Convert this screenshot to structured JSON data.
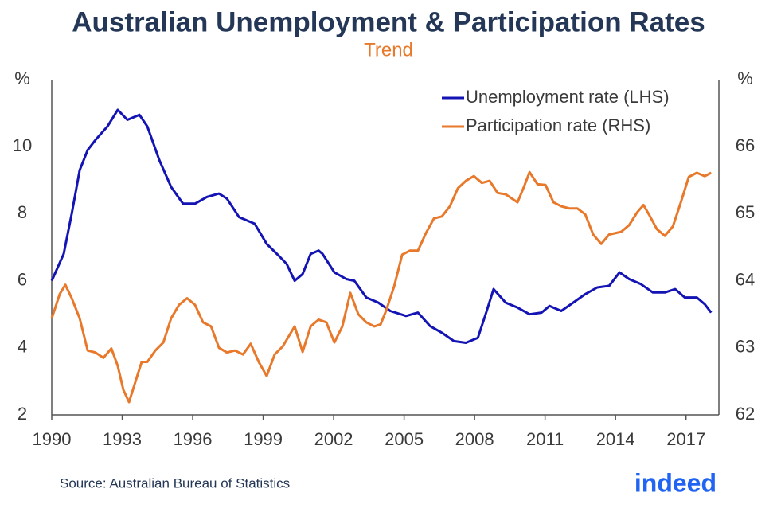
{
  "chart_data": {
    "type": "line",
    "title": "Australian Unemployment & Participation Rates",
    "subtitle": "Trend",
    "y_label": "%",
    "y2_label": "%",
    "source": "Source: Australian Bureau of Statistics",
    "logo": "indeed",
    "xlim": [
      1990,
      2018.4
    ],
    "xticks": [
      1990,
      1993,
      1996,
      1999,
      2002,
      2005,
      2008,
      2011,
      2014,
      2017
    ],
    "ylim": [
      2,
      12
    ],
    "yticks": [
      2,
      4,
      6,
      8,
      10
    ],
    "y2lim": [
      62,
      67
    ],
    "y2ticks": [
      62,
      63,
      64,
      65,
      66
    ],
    "legend": "upper right",
    "series": [
      {
        "name": "Unemployment rate (LHS)",
        "color": "#1414b4",
        "axis": "y",
        "x": [
          1990.0,
          1990.51,
          1990.85,
          1991.19,
          1991.53,
          1991.86,
          1992.37,
          1992.81,
          1993.22,
          1993.73,
          1994.07,
          1994.58,
          1995.08,
          1995.59,
          1996.1,
          1996.61,
          1997.12,
          1997.46,
          1997.97,
          1998.64,
          1999.15,
          1999.66,
          2000.0,
          2000.34,
          2000.68,
          2001.02,
          2001.36,
          2001.53,
          2002.03,
          2002.54,
          2002.88,
          2003.39,
          2003.9,
          2004.41,
          2005.08,
          2005.59,
          2006.1,
          2006.61,
          2007.12,
          2007.63,
          2008.14,
          2008.47,
          2008.81,
          2009.32,
          2009.83,
          2010.34,
          2010.85,
          2011.19,
          2011.69,
          2012.2,
          2012.71,
          2013.22,
          2013.73,
          2014.17,
          2014.58,
          2015.08,
          2015.59,
          2016.1,
          2016.54,
          2016.95,
          2017.46,
          2017.8,
          2018.07
        ],
        "values": [
          6.0,
          6.8,
          8.0,
          9.3,
          9.9,
          10.2,
          10.6,
          11.1,
          10.8,
          10.95,
          10.6,
          9.6,
          8.8,
          8.3,
          8.3,
          8.5,
          8.6,
          8.45,
          7.9,
          7.7,
          7.1,
          6.75,
          6.5,
          6.0,
          6.2,
          6.8,
          6.9,
          6.8,
          6.25,
          6.05,
          6.0,
          5.5,
          5.35,
          5.1,
          4.95,
          5.05,
          4.65,
          4.45,
          4.2,
          4.15,
          4.3,
          5.0,
          5.75,
          5.35,
          5.2,
          5.0,
          5.05,
          5.25,
          5.1,
          5.35,
          5.6,
          5.8,
          5.85,
          6.25,
          6.05,
          5.9,
          5.65,
          5.65,
          5.75,
          5.5,
          5.5,
          5.3,
          5.05
        ]
      },
      {
        "name": "Participation rate (RHS)",
        "color": "#e8782a",
        "axis": "y2",
        "x": [
          1990.0,
          1990.34,
          1990.58,
          1990.85,
          1991.19,
          1991.53,
          1991.86,
          1992.2,
          1992.54,
          1992.81,
          1993.05,
          1993.29,
          1993.56,
          1993.83,
          1994.07,
          1994.41,
          1994.75,
          1995.08,
          1995.42,
          1995.76,
          1996.1,
          1996.44,
          1996.78,
          1997.12,
          1997.46,
          1997.8,
          1998.14,
          1998.47,
          1998.81,
          1999.15,
          1999.49,
          1999.83,
          2000.34,
          2000.68,
          2001.02,
          2001.36,
          2001.69,
          2002.03,
          2002.37,
          2002.71,
          2003.05,
          2003.39,
          2003.73,
          2004.0,
          2004.24,
          2004.58,
          2004.92,
          2005.25,
          2005.59,
          2005.93,
          2006.27,
          2006.61,
          2006.95,
          2007.29,
          2007.63,
          2007.97,
          2008.31,
          2008.64,
          2008.98,
          2009.32,
          2009.83,
          2010.1,
          2010.34,
          2010.68,
          2011.02,
          2011.36,
          2011.69,
          2012.03,
          2012.37,
          2012.71,
          2013.05,
          2013.39,
          2013.73,
          2014.24,
          2014.58,
          2014.92,
          2015.19,
          2015.42,
          2015.76,
          2016.1,
          2016.44,
          2016.78,
          2017.12,
          2017.46,
          2017.8,
          2018.07
        ],
        "values": [
          63.44,
          63.8,
          63.94,
          63.74,
          63.44,
          62.96,
          62.93,
          62.85,
          62.99,
          62.73,
          62.37,
          62.19,
          62.49,
          62.79,
          62.79,
          62.96,
          63.08,
          63.44,
          63.64,
          63.74,
          63.64,
          63.38,
          63.32,
          63.0,
          62.93,
          62.96,
          62.9,
          63.06,
          62.79,
          62.58,
          62.9,
          63.02,
          63.32,
          62.94,
          63.32,
          63.42,
          63.38,
          63.08,
          63.32,
          63.82,
          63.5,
          63.38,
          63.32,
          63.35,
          63.56,
          63.92,
          64.39,
          64.45,
          64.45,
          64.71,
          64.93,
          64.96,
          65.11,
          65.38,
          65.49,
          65.56,
          65.46,
          65.49,
          65.31,
          65.29,
          65.17,
          65.4,
          65.62,
          65.44,
          65.43,
          65.17,
          65.11,
          65.08,
          65.08,
          64.99,
          64.69,
          64.55,
          64.69,
          64.73,
          64.83,
          65.02,
          65.13,
          64.99,
          64.77,
          64.67,
          64.81,
          65.17,
          65.55,
          65.61,
          65.56,
          65.61
        ]
      }
    ]
  }
}
